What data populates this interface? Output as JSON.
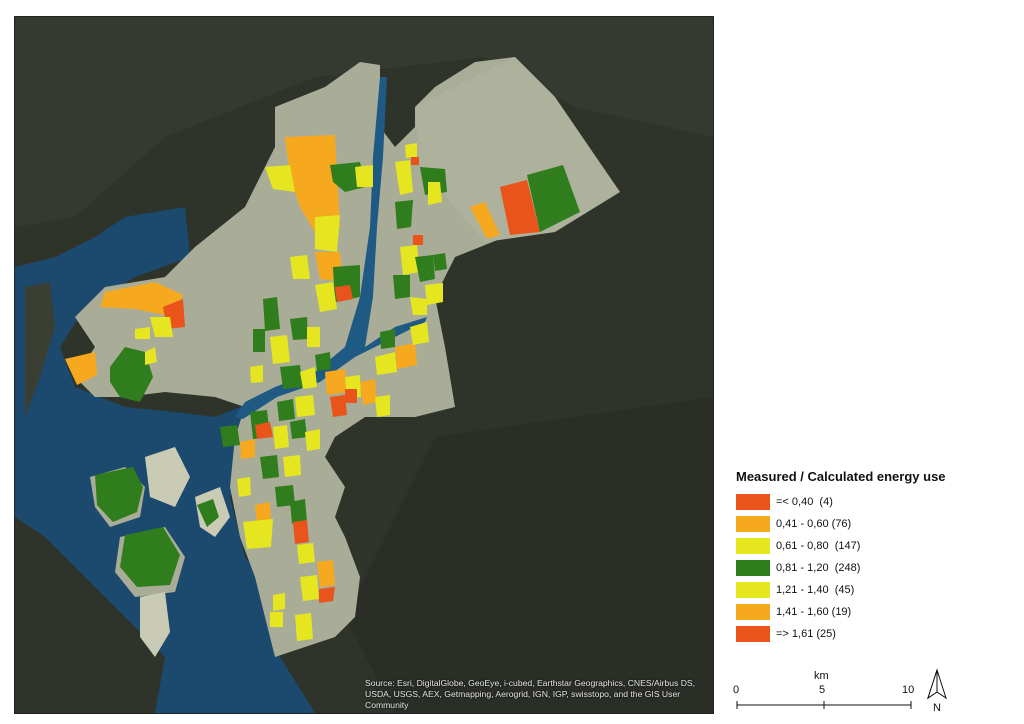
{
  "map": {
    "attribution": "Source: Esri, DigitalGlobe, GeoEye, i-cubed, Earthstar Geographics, CNES/Airbus DS, USDA, USGS, AEX, Getmapping, Aerogrid, IGN, IGP, swisstopo, and the GIS User Community",
    "colors": {
      "satellite": "#2f342b",
      "water": "#1b4a6e",
      "city_area": "#a9ad98",
      "river": "#1f5a85"
    }
  },
  "legend": {
    "title": "Measured / Calculated energy use",
    "items": [
      {
        "label": "=< 0,40  (4)",
        "color": "#e8541a"
      },
      {
        "label": "0,41 - 0,60 (76)",
        "color": "#f6a91f"
      },
      {
        "label": "0,61 - 0,80  (147)",
        "color": "#e5e61f"
      },
      {
        "label": "0,81 - 1,20  (248)",
        "color": "#2f7d1c"
      },
      {
        "label": "1,21 - 1,40  (45)",
        "color": "#e5e61f"
      },
      {
        "label": "1,41 - 1,60 (19)",
        "color": "#f6a91f"
      },
      {
        "label": "=> 1,61 (25)",
        "color": "#e8541a"
      }
    ]
  },
  "scale_bar": {
    "unit": "km",
    "ticks": [
      "0",
      "5",
      "10"
    ]
  },
  "north_arrow": {
    "label": "N",
    "icon": "north-arrow-icon"
  }
}
